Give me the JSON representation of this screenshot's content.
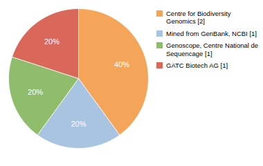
{
  "chart_data": {
    "type": "pie",
    "categories": [
      "Centre for Biodiversity\nGenomics [2]",
      "Mined from GenBank, NCBI [1]",
      "Genoscope, Centre National de\nSequencage [1]",
      "GATC Biotech AG [1]"
    ],
    "values": [
      40,
      20,
      20,
      20
    ],
    "value_labels": [
      "40%",
      "20%",
      "20%",
      "20%"
    ],
    "colors": [
      "#F5A55A",
      "#A8C4E0",
      "#8FBD6B",
      "#D9685A"
    ],
    "data_labels": true,
    "legend": "right"
  }
}
